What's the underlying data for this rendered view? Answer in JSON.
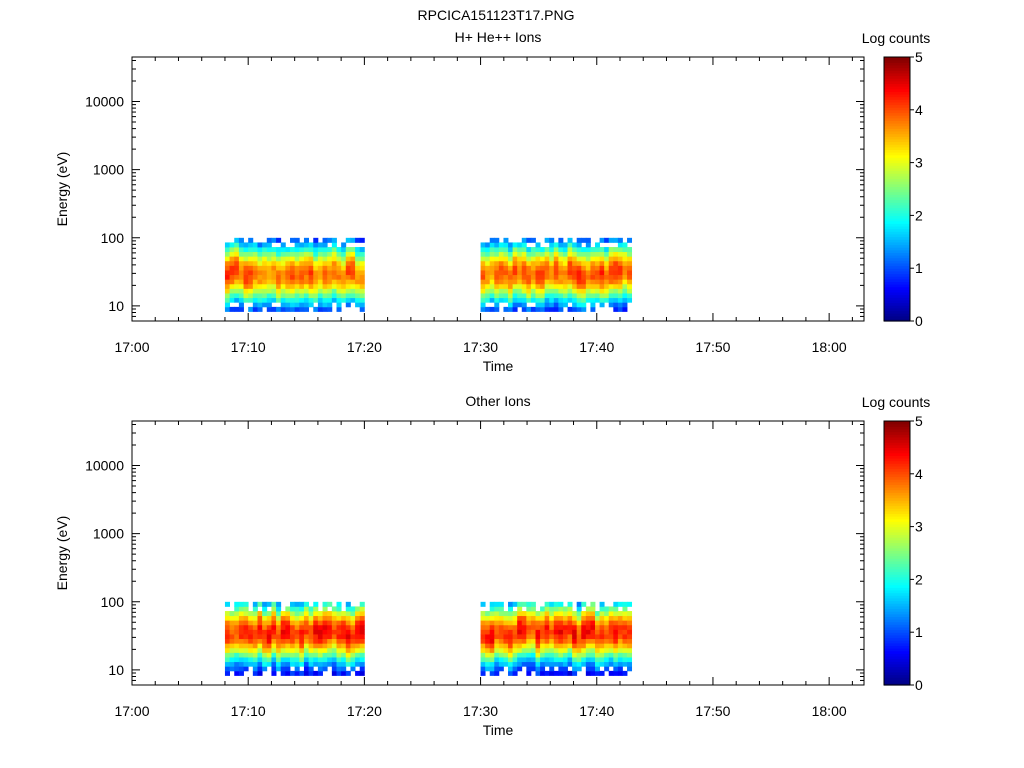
{
  "figure_title": "RPCICA151123T17.PNG",
  "colors": {
    "no_data": "#ffffff",
    "axes": "#000000",
    "colormap": [
      "#00007f",
      "#0000ff",
      "#007fff",
      "#00ffff",
      "#7fff7f",
      "#ffff00",
      "#ff7f00",
      "#ff0000",
      "#7f0000"
    ]
  },
  "chart_data": [
    {
      "type": "heatmap",
      "title": "H+ He++ Ions",
      "xlabel": "Time",
      "ylabel": "Energy (eV)",
      "x_range": [
        "17:00",
        "18:03"
      ],
      "x_ticks": [
        "17:00",
        "17:10",
        "17:20",
        "17:30",
        "17:40",
        "17:50",
        "18:00"
      ],
      "y_scale": "log",
      "y_range": [
        6,
        45000
      ],
      "y_ticks": [
        "10",
        "100",
        "1000",
        "10000"
      ],
      "colorbar": {
        "label": "Log counts",
        "range": [
          0,
          5
        ],
        "ticks": [
          "0",
          "1",
          "2",
          "3",
          "4",
          "5"
        ]
      },
      "data_intervals": [
        [
          "17:08",
          "17:20"
        ],
        [
          "17:30",
          "17:43"
        ]
      ],
      "energy_range_eV": [
        12,
        95
      ],
      "peak_energy_eV": 30,
      "peak_log_counts": 4.2
    },
    {
      "type": "heatmap",
      "title": "Other Ions",
      "xlabel": "Time",
      "ylabel": "Energy (eV)",
      "x_range": [
        "17:00",
        "18:03"
      ],
      "x_ticks": [
        "17:00",
        "17:10",
        "17:20",
        "17:30",
        "17:40",
        "17:50",
        "18:00"
      ],
      "y_scale": "log",
      "y_range": [
        6,
        45000
      ],
      "y_ticks": [
        "10",
        "100",
        "1000",
        "10000"
      ],
      "colorbar": {
        "label": "Log counts",
        "range": [
          0,
          5
        ],
        "ticks": [
          "0",
          "1",
          "2",
          "3",
          "4",
          "5"
        ]
      },
      "data_intervals": [
        [
          "17:08",
          "17:20"
        ],
        [
          "17:30",
          "17:43"
        ]
      ],
      "energy_range_eV": [
        12,
        95
      ],
      "peak_energy_eV": 35,
      "peak_log_counts": 4.5
    }
  ]
}
